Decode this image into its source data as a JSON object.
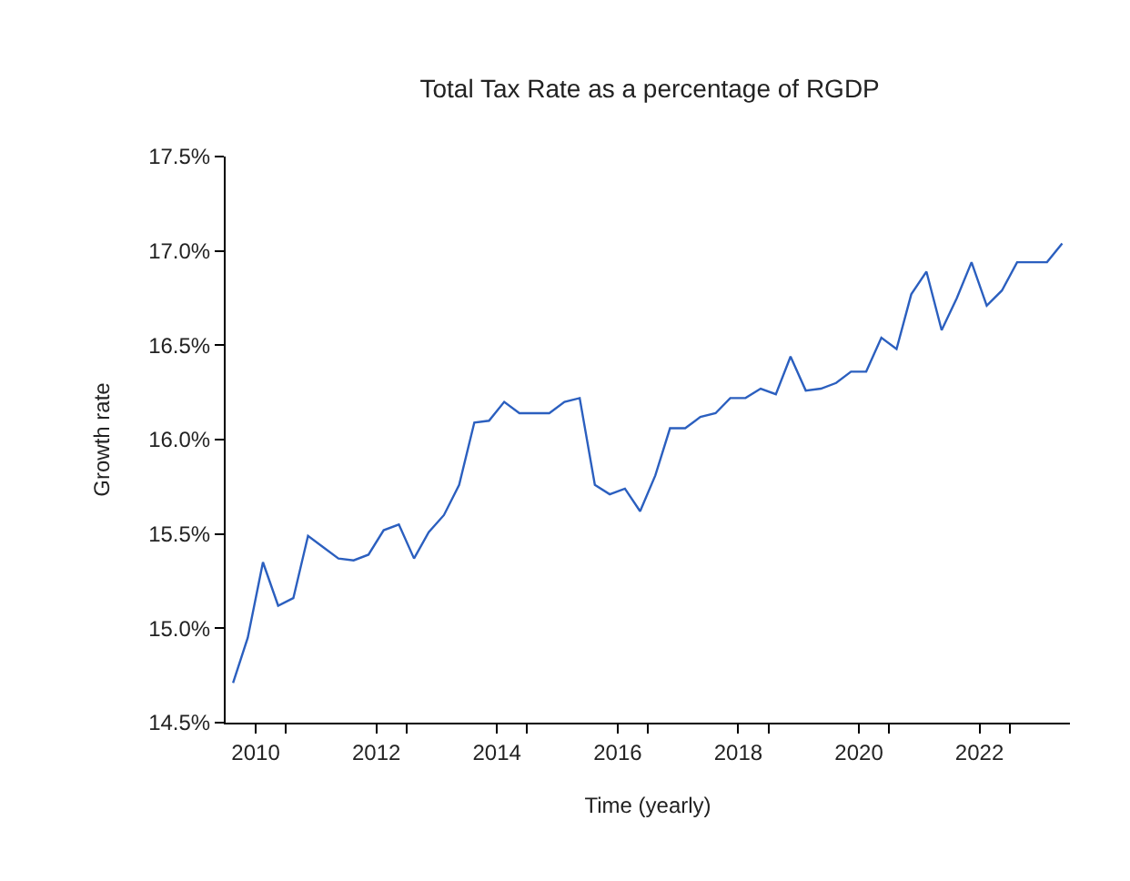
{
  "chart_data": {
    "type": "line",
    "title": "Total Tax Rate as a percentage of RGDP",
    "xlabel": "Time (yearly)",
    "ylabel": "Growth rate",
    "x": [
      "2010-02-15",
      "2010-05-15",
      "2010-08-15",
      "2010-11-15",
      "2011-02-15",
      "2011-05-15",
      "2011-08-15",
      "2011-11-15",
      "2012-02-15",
      "2012-05-15",
      "2012-08-15",
      "2012-11-15",
      "2013-02-15",
      "2013-05-15",
      "2013-08-15",
      "2013-11-15",
      "2014-02-15",
      "2014-05-15",
      "2014-08-15",
      "2014-11-15",
      "2015-02-15",
      "2015-05-15",
      "2015-08-15",
      "2015-11-15",
      "2016-02-15",
      "2016-05-15",
      "2016-08-15",
      "2016-11-15",
      "2017-02-15",
      "2017-05-15",
      "2017-08-15",
      "2017-11-15",
      "2018-02-15",
      "2018-05-15",
      "2018-08-15",
      "2018-11-15",
      "2019-02-15",
      "2019-05-15",
      "2019-08-15",
      "2019-11-15",
      "2020-02-15",
      "2020-05-15",
      "2020-08-15",
      "2020-11-15",
      "2021-02-15",
      "2021-05-15",
      "2021-08-15",
      "2021-11-15",
      "2022-02-15",
      "2022-05-15",
      "2022-08-15",
      "2022-11-15",
      "2023-02-15",
      "2023-05-15",
      "2023-08-15",
      "2023-11-15"
    ],
    "series": [
      {
        "color": "#2b5fbf",
        "values": [
          14.71,
          14.95,
          15.35,
          15.12,
          15.16,
          15.49,
          15.43,
          15.37,
          15.36,
          15.39,
          15.52,
          15.55,
          15.37,
          15.51,
          15.6,
          15.76,
          16.09,
          16.1,
          16.2,
          16.14,
          16.14,
          16.14,
          16.2,
          16.22,
          15.76,
          15.71,
          15.74,
          15.62,
          15.81,
          16.06,
          16.06,
          16.12,
          16.14,
          16.22,
          16.22,
          16.27,
          16.24,
          16.44,
          16.26,
          16.27,
          16.3,
          16.36,
          16.36,
          16.54,
          16.48,
          16.77,
          16.89,
          16.58,
          16.75,
          16.94,
          16.71,
          16.79,
          16.94,
          16.94,
          16.94,
          17.04
        ]
      }
    ],
    "xlim": [
      "2010-01-01",
      "2024-01-01"
    ],
    "xticks": [
      {
        "value": "2010-07-02",
        "label": "2010"
      },
      {
        "value": "2011-01-01",
        "label": null
      },
      {
        "value": "2012-07-02",
        "label": "2012"
      },
      {
        "value": "2013-01-01",
        "label": null
      },
      {
        "value": "2014-07-02",
        "label": "2014"
      },
      {
        "value": "2015-01-01",
        "label": null
      },
      {
        "value": "2016-07-02",
        "label": "2016"
      },
      {
        "value": "2017-01-01",
        "label": null
      },
      {
        "value": "2018-07-02",
        "label": "2018"
      },
      {
        "value": "2019-01-01",
        "label": null
      },
      {
        "value": "2020-07-02",
        "label": "2020"
      },
      {
        "value": "2021-01-01",
        "label": null
      },
      {
        "value": "2022-07-02",
        "label": "2022"
      },
      {
        "value": "2023-01-01",
        "label": null
      }
    ],
    "ylim": [
      14.5,
      17.5
    ],
    "yticks": [
      {
        "value": 14.5,
        "label": "14.5%"
      },
      {
        "value": 15.0,
        "label": "15.0%"
      },
      {
        "value": 15.5,
        "label": "15.5%"
      },
      {
        "value": 16.0,
        "label": "16.0%"
      },
      {
        "value": 16.5,
        "label": "16.5%"
      },
      {
        "value": 17.0,
        "label": "17.0%"
      },
      {
        "value": 17.5,
        "label": "17.5%"
      }
    ],
    "grid": false,
    "marker": "none",
    "line_style": "solid"
  }
}
